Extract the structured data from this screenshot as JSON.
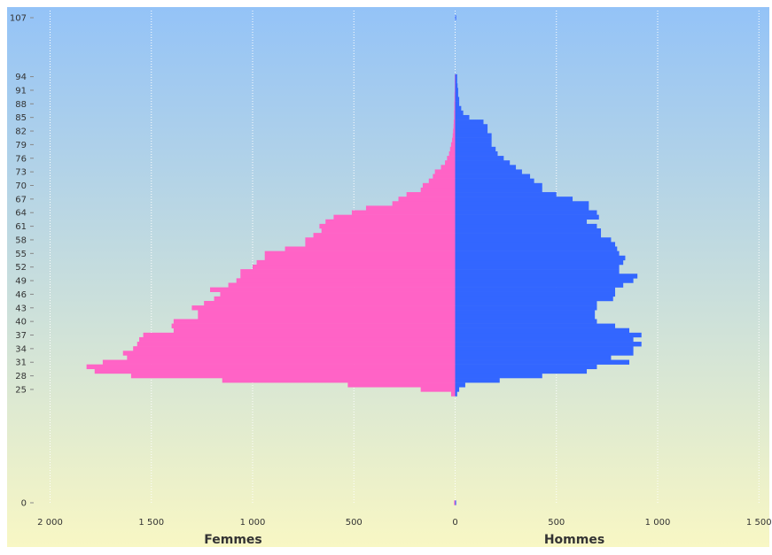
{
  "chart_data": {
    "type": "bar",
    "orientation": "horizontal",
    "layout": "population-pyramid",
    "xlabel_left": "Femmes",
    "xlabel_right": "Hommes",
    "x_ticks": [
      "2 000",
      "1 500",
      "1 000",
      "500",
      "0",
      "500",
      "1 000",
      "1 500"
    ],
    "xlim_left": [
      0,
      2000
    ],
    "xlim_right": [
      0,
      1500
    ],
    "y_ticks": [
      "107",
      "94",
      "91",
      "88",
      "85",
      "82",
      "79",
      "76",
      "73",
      "70",
      "67",
      "64",
      "61",
      "58",
      "55",
      "52",
      "49",
      "46",
      "43",
      "40",
      "37",
      "34",
      "31",
      "28",
      "25",
      "0"
    ],
    "grid": "vertical dotted",
    "background": {
      "top": "#94c3f7",
      "bottom": "#f8f7c4"
    },
    "categories": [
      "0",
      "24",
      "25",
      "26",
      "27",
      "28",
      "29",
      "30",
      "31",
      "32",
      "33",
      "34",
      "35",
      "36",
      "37",
      "38",
      "39",
      "40",
      "41",
      "42",
      "43",
      "44",
      "45",
      "46",
      "47",
      "48",
      "49",
      "50",
      "51",
      "52",
      "53",
      "54",
      "55",
      "56",
      "57",
      "58",
      "59",
      "60",
      "61",
      "62",
      "63",
      "64",
      "65",
      "66",
      "67",
      "68",
      "69",
      "70",
      "71",
      "72",
      "73",
      "74",
      "75",
      "76",
      "77",
      "78",
      "79",
      "80",
      "81",
      "82",
      "83",
      "84",
      "85",
      "86",
      "87",
      "88",
      "89",
      "90",
      "91",
      "92",
      "93",
      "94",
      "107"
    ],
    "series": [
      {
        "name": "Femmes",
        "side": "left",
        "color": "#ff63c6",
        "values": [
          5,
          20,
          170,
          530,
          1150,
          1600,
          1780,
          1820,
          1740,
          1620,
          1640,
          1590,
          1570,
          1560,
          1540,
          1390,
          1400,
          1390,
          1270,
          1270,
          1300,
          1240,
          1190,
          1160,
          1210,
          1120,
          1080,
          1060,
          1060,
          1000,
          980,
          940,
          940,
          840,
          740,
          740,
          700,
          660,
          670,
          640,
          600,
          510,
          440,
          310,
          280,
          240,
          170,
          160,
          130,
          110,
          100,
          70,
          50,
          40,
          30,
          25,
          20,
          15,
          12,
          10,
          8,
          7,
          5,
          5,
          4,
          4,
          3,
          3,
          2,
          2,
          2,
          2,
          0
        ]
      },
      {
        "name": "Hommes",
        "side": "right",
        "color": "#3366ff",
        "values": [
          5,
          10,
          20,
          50,
          220,
          430,
          650,
          700,
          860,
          770,
          880,
          880,
          920,
          880,
          920,
          860,
          790,
          700,
          690,
          690,
          700,
          700,
          780,
          790,
          790,
          830,
          880,
          900,
          810,
          810,
          830,
          840,
          810,
          800,
          790,
          770,
          720,
          720,
          700,
          650,
          710,
          700,
          660,
          660,
          580,
          500,
          430,
          430,
          390,
          370,
          330,
          300,
          270,
          240,
          210,
          200,
          180,
          180,
          180,
          160,
          160,
          140,
          70,
          40,
          30,
          20,
          20,
          15,
          15,
          12,
          10,
          10,
          5
        ]
      }
    ]
  }
}
